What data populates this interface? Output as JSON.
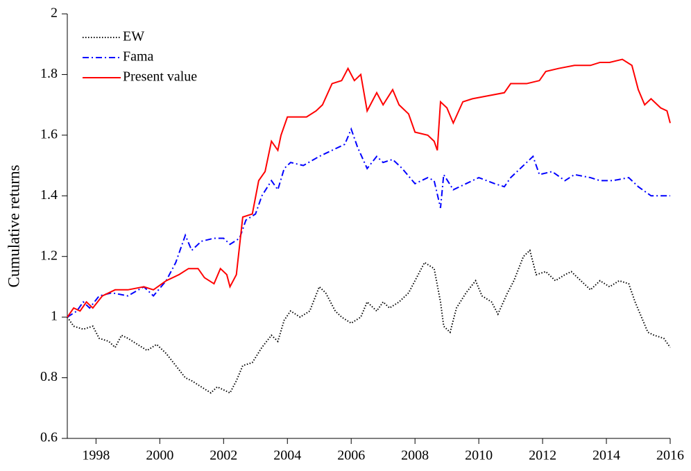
{
  "chart_data": {
    "type": "line",
    "ylabel": "Cumulative returns",
    "xlim": [
      1997.1,
      2016
    ],
    "xticks": [
      1998,
      2000,
      2002,
      2004,
      2006,
      2008,
      2010,
      2012,
      2014,
      2016
    ],
    "ylim": [
      0.6,
      2
    ],
    "yticks": [
      0.6,
      0.8,
      1,
      1.2,
      1.4,
      1.6,
      1.8,
      2
    ],
    "legend": "upper left",
    "series": [
      {
        "name": "EW",
        "color": "#000000",
        "style": "dotted",
        "x": [
          1997.1,
          1997.3,
          1997.6,
          1997.9,
          1998.1,
          1998.4,
          1998.6,
          1998.8,
          1999.0,
          1999.3,
          1999.6,
          1999.9,
          2000.2,
          2000.5,
          2000.8,
          2001.0,
          2001.3,
          2001.6,
          2001.8,
          2002.0,
          2002.2,
          2002.4,
          2002.6,
          2002.9,
          2003.2,
          2003.5,
          2003.7,
          2003.9,
          2004.1,
          2004.4,
          2004.7,
          2005.0,
          2005.2,
          2005.5,
          2005.7,
          2006.0,
          2006.3,
          2006.5,
          2006.8,
          2007.0,
          2007.2,
          2007.5,
          2007.8,
          2008.0,
          2008.3,
          2008.6,
          2008.8,
          2008.9,
          2009.1,
          2009.3,
          2009.6,
          2009.9,
          2010.1,
          2010.4,
          2010.6,
          2010.9,
          2011.1,
          2011.4,
          2011.6,
          2011.8,
          2012.1,
          2012.4,
          2012.7,
          2012.9,
          2013.2,
          2013.5,
          2013.8,
          2014.1,
          2014.4,
          2014.7,
          2014.9,
          2015.1,
          2015.3,
          2015.5,
          2015.8,
          2016.0
        ],
        "values": [
          1.0,
          0.97,
          0.96,
          0.97,
          0.93,
          0.92,
          0.9,
          0.94,
          0.93,
          0.91,
          0.89,
          0.91,
          0.88,
          0.84,
          0.8,
          0.79,
          0.77,
          0.75,
          0.77,
          0.76,
          0.75,
          0.79,
          0.84,
          0.85,
          0.9,
          0.94,
          0.92,
          0.99,
          1.02,
          1.0,
          1.02,
          1.1,
          1.08,
          1.02,
          1.0,
          0.98,
          1.0,
          1.05,
          1.02,
          1.05,
          1.03,
          1.05,
          1.08,
          1.12,
          1.18,
          1.16,
          1.05,
          0.97,
          0.95,
          1.03,
          1.08,
          1.12,
          1.07,
          1.05,
          1.01,
          1.08,
          1.12,
          1.2,
          1.22,
          1.14,
          1.15,
          1.12,
          1.14,
          1.15,
          1.12,
          1.09,
          1.12,
          1.1,
          1.12,
          1.11,
          1.05,
          1.0,
          0.95,
          0.94,
          0.93,
          0.9
        ]
      },
      {
        "name": "Fama",
        "color": "#0000ff",
        "style": "dashdot",
        "x": [
          1997.1,
          1997.4,
          1997.6,
          1997.8,
          1998.1,
          1998.5,
          1999.0,
          1999.5,
          1999.8,
          2000.2,
          2000.5,
          2000.8,
          2001.0,
          2001.3,
          2001.7,
          2002.0,
          2002.2,
          2002.5,
          2002.7,
          2003.0,
          2003.2,
          2003.5,
          2003.7,
          2003.9,
          2004.1,
          2004.5,
          2005.0,
          2005.4,
          2005.8,
          2006.0,
          2006.2,
          2006.5,
          2006.8,
          2007.0,
          2007.3,
          2007.6,
          2008.0,
          2008.4,
          2008.6,
          2008.8,
          2008.9,
          2009.2,
          2009.6,
          2010.0,
          2010.5,
          2010.8,
          2011.0,
          2011.4,
          2011.7,
          2011.9,
          2012.3,
          2012.7,
          2013.0,
          2013.5,
          2013.8,
          2014.2,
          2014.7,
          2015.0,
          2015.4,
          2015.8,
          2016.0
        ],
        "values": [
          1.0,
          1.02,
          1.05,
          1.03,
          1.07,
          1.08,
          1.07,
          1.1,
          1.07,
          1.12,
          1.18,
          1.27,
          1.22,
          1.25,
          1.26,
          1.26,
          1.24,
          1.26,
          1.32,
          1.34,
          1.4,
          1.45,
          1.42,
          1.49,
          1.51,
          1.5,
          1.53,
          1.55,
          1.57,
          1.62,
          1.56,
          1.49,
          1.53,
          1.51,
          1.52,
          1.49,
          1.44,
          1.46,
          1.45,
          1.36,
          1.47,
          1.42,
          1.44,
          1.46,
          1.44,
          1.43,
          1.46,
          1.5,
          1.53,
          1.47,
          1.48,
          1.45,
          1.47,
          1.46,
          1.45,
          1.45,
          1.46,
          1.43,
          1.4,
          1.4,
          1.4
        ]
      },
      {
        "name": "Present value",
        "color": "#ff0000",
        "style": "solid",
        "x": [
          1997.1,
          1997.3,
          1997.5,
          1997.7,
          1997.9,
          1998.2,
          1998.6,
          1999.0,
          1999.5,
          1999.8,
          2000.2,
          2000.6,
          2000.9,
          2001.2,
          2001.4,
          2001.7,
          2001.9,
          2002.1,
          2002.2,
          2002.4,
          2002.6,
          2002.9,
          2003.1,
          2003.3,
          2003.5,
          2003.7,
          2003.8,
          2004.0,
          2004.3,
          2004.6,
          2004.9,
          2005.1,
          2005.4,
          2005.7,
          2005.9,
          2006.1,
          2006.3,
          2006.5,
          2006.8,
          2007.0,
          2007.3,
          2007.5,
          2007.8,
          2008.0,
          2008.4,
          2008.6,
          2008.7,
          2008.8,
          2009.0,
          2009.2,
          2009.5,
          2009.8,
          2010.3,
          2010.8,
          2011.0,
          2011.5,
          2011.9,
          2012.1,
          2012.5,
          2013.0,
          2013.5,
          2013.8,
          2014.1,
          2014.5,
          2014.8,
          2015.0,
          2015.2,
          2015.4,
          2015.7,
          2015.9,
          2016.0
        ],
        "values": [
          1.0,
          1.03,
          1.02,
          1.05,
          1.03,
          1.07,
          1.09,
          1.09,
          1.1,
          1.09,
          1.12,
          1.14,
          1.16,
          1.16,
          1.13,
          1.11,
          1.16,
          1.14,
          1.1,
          1.14,
          1.33,
          1.34,
          1.45,
          1.48,
          1.58,
          1.55,
          1.6,
          1.66,
          1.66,
          1.66,
          1.68,
          1.7,
          1.77,
          1.78,
          1.82,
          1.78,
          1.8,
          1.68,
          1.74,
          1.7,
          1.75,
          1.7,
          1.67,
          1.61,
          1.6,
          1.58,
          1.55,
          1.71,
          1.69,
          1.64,
          1.71,
          1.72,
          1.73,
          1.74,
          1.77,
          1.77,
          1.78,
          1.81,
          1.82,
          1.83,
          1.83,
          1.84,
          1.84,
          1.85,
          1.83,
          1.75,
          1.7,
          1.72,
          1.69,
          1.68,
          1.64
        ]
      }
    ]
  }
}
